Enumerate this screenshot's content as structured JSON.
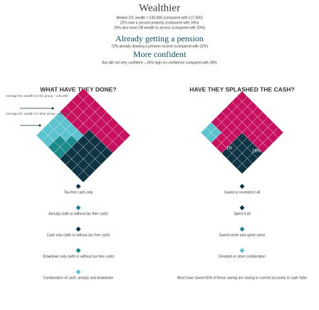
{
  "header": {
    "title": "Wealthier",
    "lines": [
      "Median DC wealth = £30,000 (compared with £17,500)",
      "22% own a second property (compared with 16%)",
      "25% also have DB wealth to access (compared with 20%)"
    ],
    "section2": "Already getting a pension",
    "section2_line": "72% already drawing a pension income (compared with 32%)",
    "section3": "More confident",
    "section3_line": "But still not very confident – 35% high on confidence compared with 28%"
  },
  "left": {
    "heading": "WHAT HAVE THEY DONE?",
    "labels": [
      "Average DC wealth for this group – £35,000",
      "Average DC wealth for other group – £23,000"
    ],
    "legend": [
      "Tax-free cash only",
      "Annuity (with or without tax free cash)",
      "Cash only (with or without tax free cash)",
      "Drawdown only (with or without tax free cash)",
      "Combination of cash, annuity and drawdown"
    ]
  },
  "right": {
    "heading": "HAVE THEY SPLASHED THE CASH?",
    "labels": [
      "1%",
      "18%"
    ],
    "legend": [
      "Saved or invested it all",
      "Spent it all",
      "Saved some and spent some",
      "Donated or other combination",
      "Most have saved 60% of those saving are saving in current accounts or cash ISAs"
    ]
  }
}
